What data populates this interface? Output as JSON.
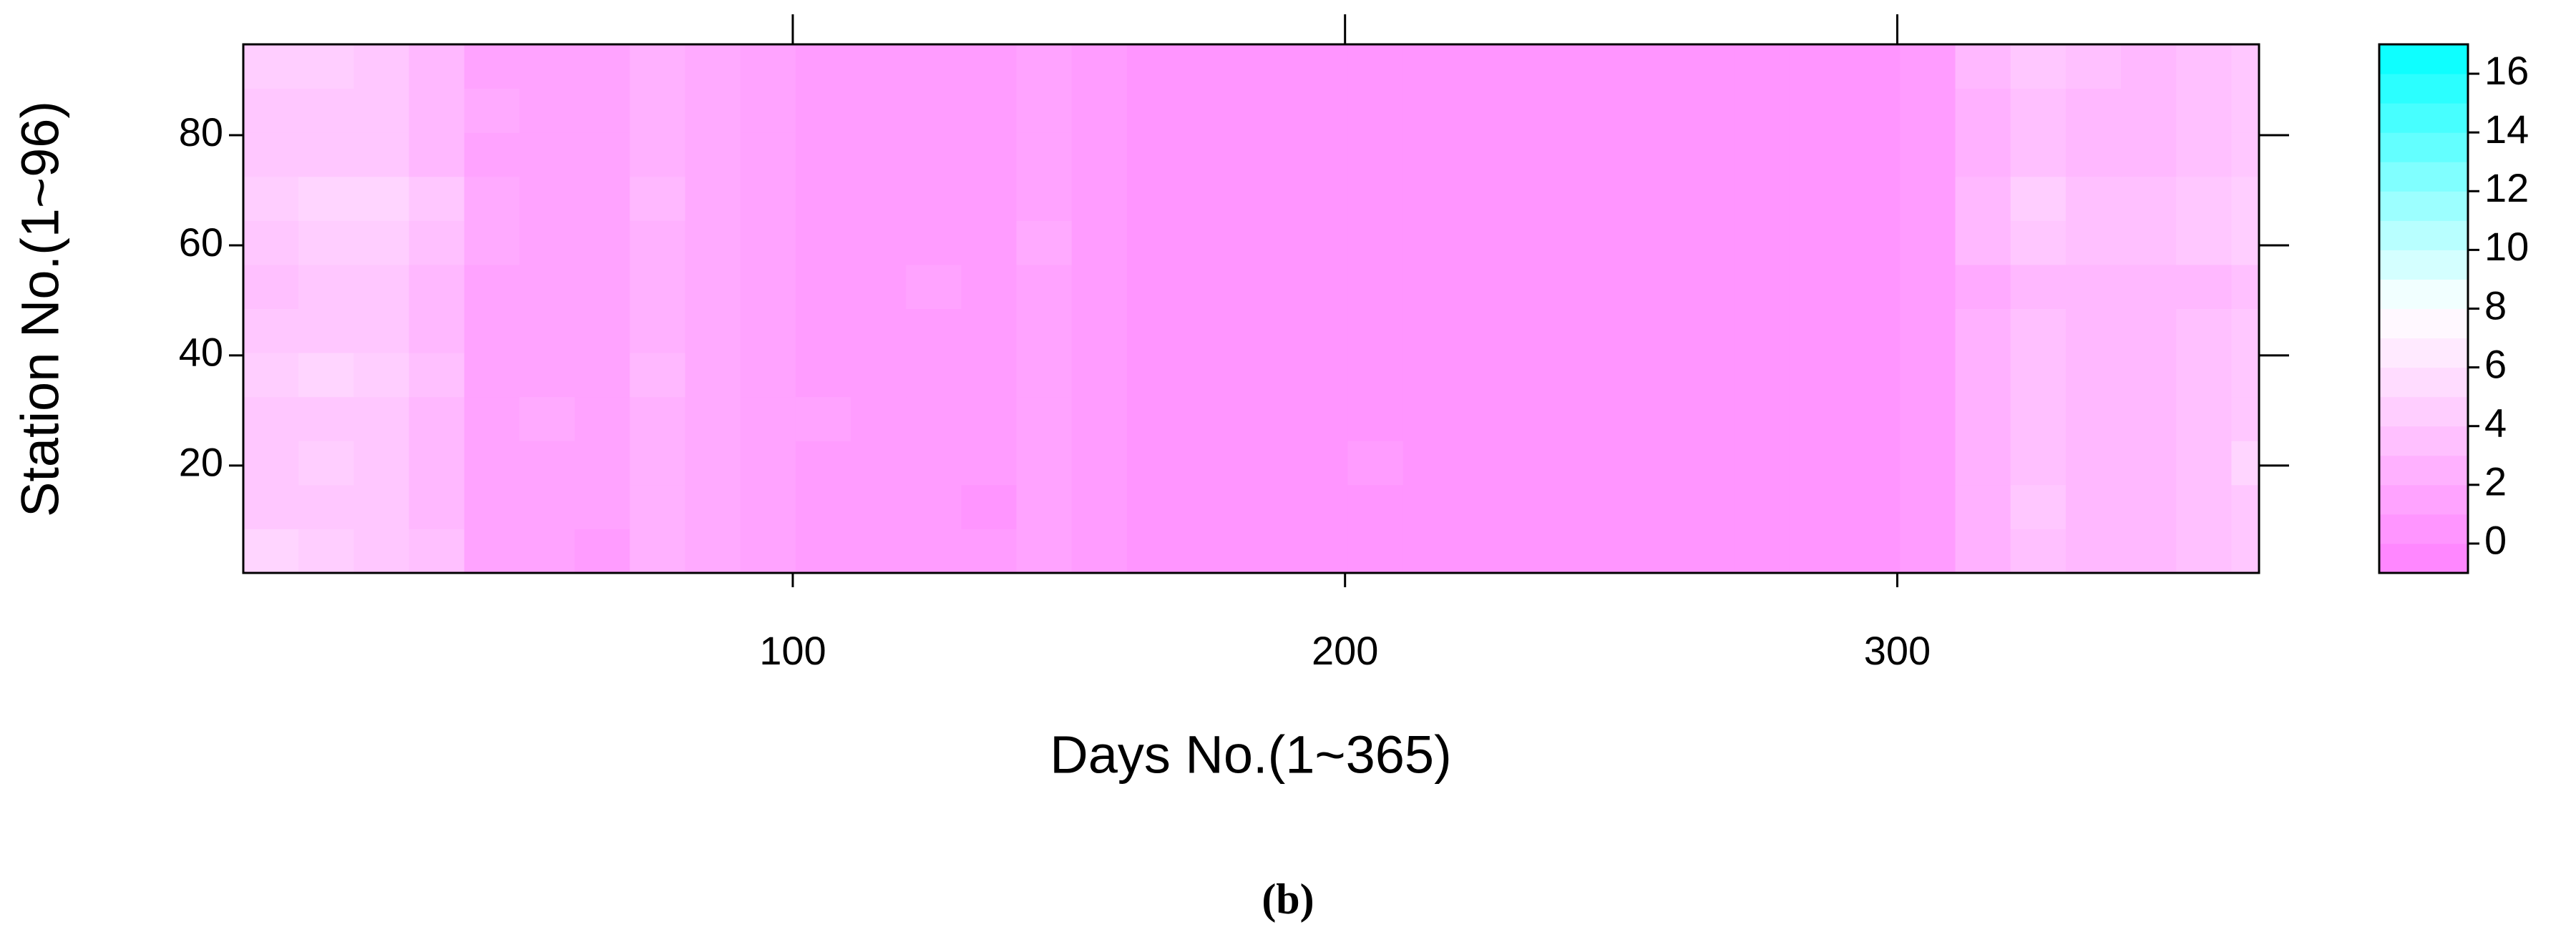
{
  "chart_data": {
    "type": "heatmap",
    "xlabel": "Days No.(1~365)",
    "ylabel": "Station No.(1~96)",
    "caption": "(b)",
    "xlim": [
      0.5,
      365.5
    ],
    "xticks": [
      100,
      200,
      300
    ],
    "ylim": [
      0.5,
      96.5
    ],
    "yticks": [
      20,
      40,
      60,
      80
    ],
    "xbins": [
      0.5,
      10.5,
      20.5,
      30.5,
      40.5,
      50.5,
      60.5,
      70.5,
      80.5,
      90.5,
      100.5,
      110.5,
      120.5,
      130.5,
      140.5,
      150.5,
      160.5,
      170.5,
      180.5,
      190.5,
      200.5,
      210.5,
      220.5,
      230.5,
      240.5,
      250.5,
      260.5,
      270.5,
      280.5,
      290.5,
      300.5,
      310.5,
      320.5,
      330.5,
      340.5,
      350.5,
      360.5,
      365.5
    ],
    "ybins": [
      0.5,
      8.5,
      16.5,
      24.5,
      32.5,
      40.5,
      48.5,
      56.5,
      64.5,
      72.5,
      80.5,
      88.5,
      96.5
    ],
    "values": [
      [
        5,
        4.5,
        4,
        3.5,
        1.5,
        1.5,
        1,
        2.5,
        2,
        1.5,
        1,
        1,
        1,
        1,
        1.5,
        1,
        0.5,
        0.5,
        0.5,
        0.5,
        0.5,
        0.5,
        0.5,
        0.5,
        0.5,
        0.5,
        0.5,
        0.5,
        0.5,
        0.5,
        1,
        2.5,
        3.5,
        3,
        3,
        3.5,
        4
      ],
      [
        4,
        4,
        4,
        3,
        1.5,
        1.5,
        1.5,
        2.5,
        2,
        1.5,
        1,
        1,
        1,
        0.5,
        1.5,
        1,
        0.5,
        0.5,
        0.5,
        0.5,
        0.5,
        0.5,
        0.5,
        0.5,
        0.5,
        0.5,
        0.5,
        0.5,
        0.5,
        0.5,
        1,
        2.5,
        4,
        3,
        3,
        3.5,
        4
      ],
      [
        4,
        4.5,
        4,
        3,
        1.5,
        1.5,
        1.5,
        2.5,
        2,
        1.5,
        1,
        1,
        1,
        1,
        1.5,
        1,
        0.5,
        0.5,
        0.5,
        0.5,
        1,
        0.5,
        0.5,
        0.5,
        0.5,
        0.5,
        0.5,
        0.5,
        0.5,
        0.5,
        1,
        2.5,
        3.5,
        3,
        3,
        3.5,
        5
      ],
      [
        4,
        4,
        4,
        3,
        1.5,
        2,
        1.5,
        2.5,
        2,
        1.5,
        1.5,
        1,
        1,
        1,
        1.5,
        1,
        0.5,
        0.5,
        0.5,
        0.5,
        0.5,
        0.5,
        0.5,
        0.5,
        0.5,
        0.5,
        0.5,
        0.5,
        0.5,
        0.5,
        1,
        2.5,
        3.5,
        3,
        3,
        3.5,
        4
      ],
      [
        4.5,
        5,
        4.5,
        3.5,
        1.5,
        1.5,
        1.5,
        3,
        2,
        1.5,
        1,
        1,
        1,
        1,
        1.5,
        1,
        0.5,
        0.5,
        0.5,
        0.5,
        0.5,
        0.5,
        0.5,
        0.5,
        0.5,
        0.5,
        0.5,
        0.5,
        0.5,
        0.5,
        1,
        2.5,
        3.5,
        3,
        3,
        3.5,
        4
      ],
      [
        4,
        4,
        4,
        3,
        1.5,
        1.5,
        1.5,
        2.5,
        2,
        1.5,
        1,
        1,
        1,
        1,
        1.5,
        1,
        0.5,
        0.5,
        0.5,
        0.5,
        0.5,
        0.5,
        0.5,
        0.5,
        0.5,
        0.5,
        0.5,
        0.5,
        0.5,
        0.5,
        1,
        2.5,
        3.5,
        3,
        3,
        3.5,
        4
      ],
      [
        3.5,
        4,
        4,
        3,
        1.5,
        1.5,
        1.5,
        2.5,
        2,
        1.5,
        1,
        1,
        1.5,
        1,
        1.5,
        1,
        0.5,
        0.5,
        0.5,
        0.5,
        0.5,
        0.5,
        0.5,
        0.5,
        0.5,
        0.5,
        0.5,
        0.5,
        0.5,
        0.5,
        1,
        2,
        3,
        3,
        3,
        3,
        3.5
      ],
      [
        4,
        4.5,
        4.5,
        3.5,
        2,
        1.5,
        1.5,
        2.5,
        2,
        1.5,
        1,
        1,
        1,
        1,
        2,
        1,
        0.5,
        0.5,
        0.5,
        0.5,
        0.5,
        0.5,
        0.5,
        0.5,
        0.5,
        0.5,
        0.5,
        0.5,
        0.5,
        0.5,
        1,
        3,
        4,
        3.5,
        3.5,
        4,
        4.5
      ],
      [
        4.5,
        5,
        5,
        4,
        2,
        1.5,
        1.5,
        3,
        2,
        1.5,
        1,
        1,
        1,
        1,
        1.5,
        1,
        0.5,
        0.5,
        0.5,
        0.5,
        0.5,
        0.5,
        0.5,
        0.5,
        0.5,
        0.5,
        0.5,
        0.5,
        0.5,
        0.5,
        1,
        3,
        4.5,
        3.5,
        3.5,
        4,
        4.5
      ],
      [
        4,
        4,
        4,
        3,
        1.5,
        1.5,
        1.5,
        2.5,
        2,
        1.5,
        1,
        1,
        1,
        1,
        1.5,
        1,
        0.5,
        0.5,
        0.5,
        0.5,
        0.5,
        0.5,
        0.5,
        0.5,
        0.5,
        0.5,
        0.5,
        0.5,
        0.5,
        0.5,
        1,
        2.5,
        3.5,
        3,
        3,
        3.5,
        4
      ],
      [
        4,
        4,
        4,
        3,
        2,
        1.5,
        1.5,
        2.5,
        2,
        1.5,
        1,
        1,
        1,
        1,
        1.5,
        1,
        0.5,
        0.5,
        0.5,
        0.5,
        0.5,
        0.5,
        0.5,
        0.5,
        0.5,
        0.5,
        0.5,
        0.5,
        0.5,
        0.5,
        1,
        2.5,
        3.5,
        3,
        3,
        3.5,
        4
      ],
      [
        4.5,
        4.5,
        4,
        3,
        1.5,
        1.5,
        1.5,
        2.5,
        2,
        1.5,
        1,
        1,
        1,
        1,
        1.5,
        1,
        0.5,
        0.5,
        0.5,
        0.5,
        0.5,
        0.5,
        0.5,
        0.5,
        0.5,
        0.5,
        0.5,
        0.5,
        0.5,
        0.5,
        1,
        3,
        4,
        3.5,
        3,
        3.5,
        4
      ]
    ],
    "zlim": [
      -1,
      17
    ],
    "zticks": [
      0,
      2,
      4,
      6,
      8,
      10,
      12,
      14,
      16
    ],
    "colormap": [
      "#ff80ff",
      "#ffffff",
      "#00ffff"
    ]
  }
}
